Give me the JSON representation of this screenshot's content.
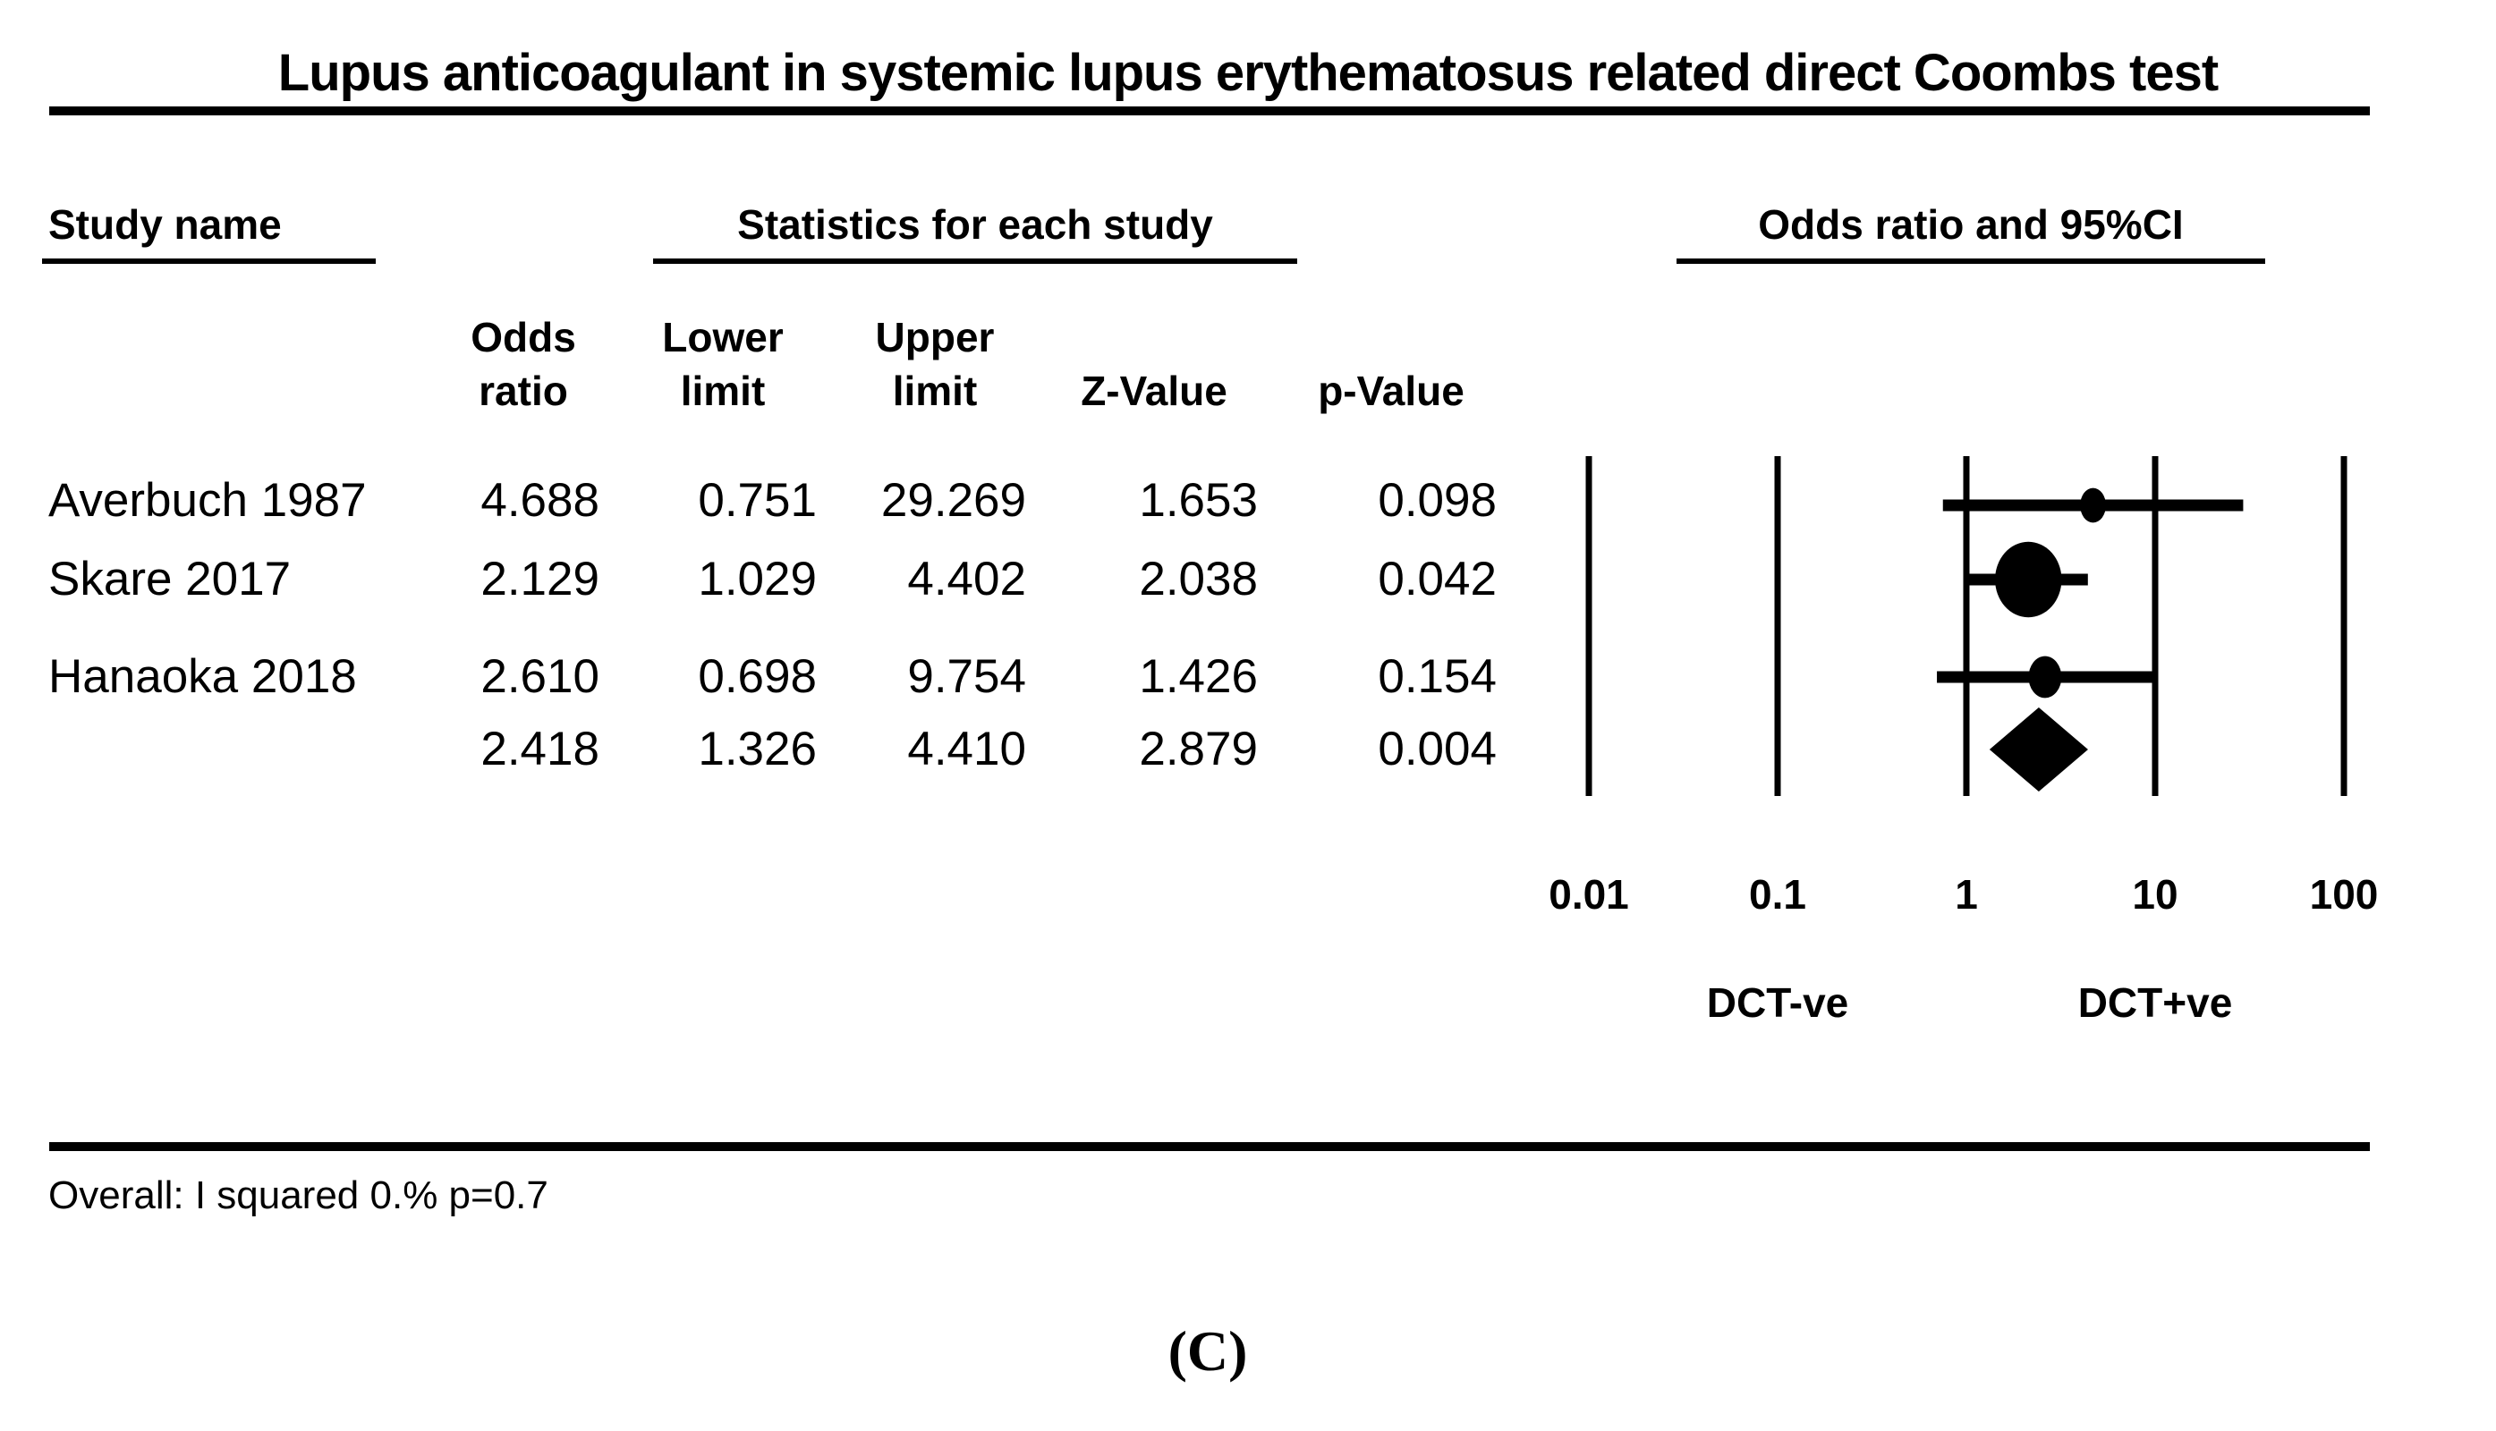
{
  "title": "Lupus anticoagulant in systemic lupus erythematosus related direct Coombs test",
  "sections": {
    "study_col": "Study name",
    "stats_col": "Statistics for each study",
    "plot_col": "Odds ratio and 95%CI"
  },
  "columns": {
    "odds": [
      "Odds",
      "ratio"
    ],
    "lower": [
      "Lower",
      "limit"
    ],
    "upper": [
      "Upper",
      "limit"
    ],
    "z": "Z-Value",
    "p": "p-Value"
  },
  "chart_data": {
    "type": "forest",
    "x_scale": "log10",
    "x_axis": {
      "tick_labels": [
        "0.01",
        "0.1",
        "1",
        "10",
        "100"
      ],
      "tick_values": [
        0.01,
        0.1,
        1,
        10,
        100
      ],
      "left_label": "DCT-ve",
      "right_label": "DCT+ve"
    },
    "studies": [
      {
        "name": "Averbuch 1987",
        "odds_ratio": "4.688",
        "lower_limit": "0.751",
        "upper_limit": "29.269",
        "z_value": "1.653",
        "p_value": "0.098",
        "relative_weight": 0.11
      },
      {
        "name": "Skare 2017",
        "odds_ratio": "2.129",
        "lower_limit": "1.029",
        "upper_limit": "4.402",
        "z_value": "2.038",
        "p_value": "0.042",
        "relative_weight": 0.68
      },
      {
        "name": "Hanaoka 2018",
        "odds_ratio": "2.610",
        "lower_limit": "0.698",
        "upper_limit": "9.754",
        "z_value": "1.426",
        "p_value": "0.154",
        "relative_weight": 0.21
      }
    ],
    "overall": {
      "odds_ratio": "2.418",
      "lower_limit": "1.326",
      "upper_limit": "4.410",
      "z_value": "2.879",
      "p_value": "0.004"
    }
  },
  "footer": {
    "heterogeneity": "Overall: I squared 0.% p=0.7",
    "panel": "(C)"
  }
}
